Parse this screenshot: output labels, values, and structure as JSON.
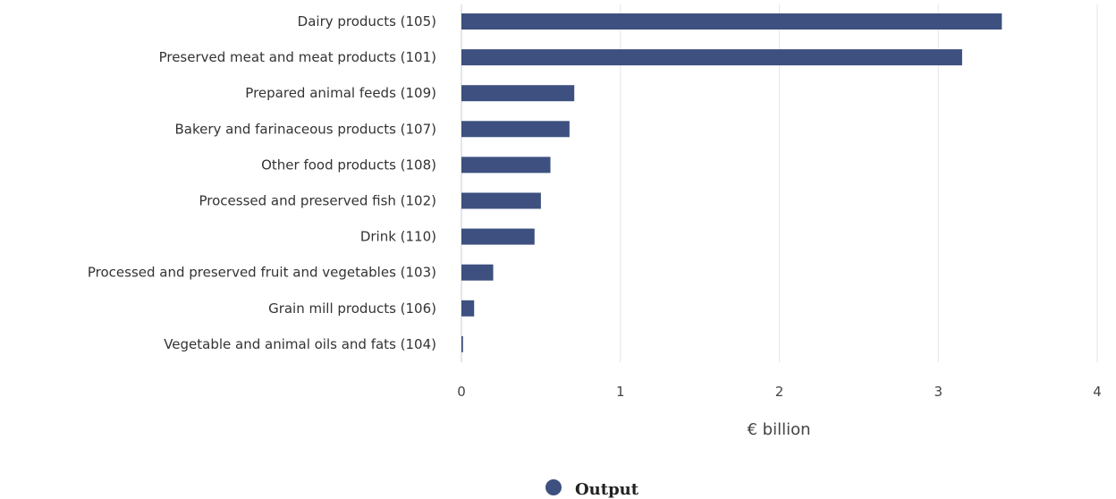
{
  "chart_data": {
    "type": "bar",
    "orientation": "horizontal",
    "categories": [
      "Dairy products (105)",
      "Preserved meat and meat products (101)",
      "Prepared animal feeds (109)",
      "Bakery and farinaceous products (107)",
      "Other food products (108)",
      "Processed and preserved fish (102)",
      "Drink (110)",
      "Processed and preserved fruit and vegetables (103)",
      "Grain mill products (106)",
      "Vegetable and animal oils and fats (104)"
    ],
    "series": [
      {
        "name": "Output",
        "color": "#3d5080",
        "values": [
          3.4,
          3.15,
          0.71,
          0.68,
          0.56,
          0.5,
          0.46,
          0.2,
          0.08,
          0.01
        ]
      }
    ],
    "xlabel": "€ billion",
    "xlim": [
      0,
      4
    ],
    "xticks": [
      "0",
      "1",
      "2",
      "3",
      "4"
    ],
    "grid": true,
    "legend": "bottom-center"
  }
}
